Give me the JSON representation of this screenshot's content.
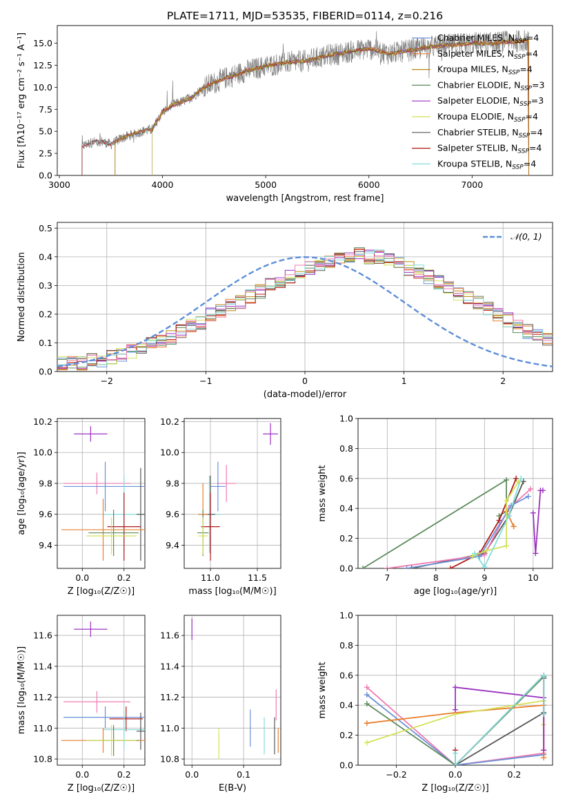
{
  "title": "PLATE=1711, MJD=53535, FIBERID=0114, z=0.216",
  "colors": {
    "Chabrier MILES": "#6a8fd6",
    "Salpeter MILES": "#e87d2a",
    "Kroupa MILES": "#b8860b",
    "Chabrier ELODIE": "#5b8a5b",
    "Salpeter ELODIE": "#9b30c0",
    "Kroupa ELODIE": "#d4e157",
    "Chabrier STELIB": "#555555",
    "Salpeter STELIB": "#b01818",
    "Kroupa STELIB": "#80dedc",
    "extra": "#ef7ab0",
    "data": "#808080",
    "gaussian": "#5b8dd9"
  },
  "chart_data": [
    {
      "id": "spectrum",
      "type": "line",
      "title": "PLATE=1711, MJD=53535, FIBERID=0114, z=0.216",
      "xlabel": "wavelength [Angstrom, rest frame]",
      "ylabel": "Flux [fλ10⁻¹⁷ erg cm⁻² s⁻¹ A⁻¹]",
      "xlim": [
        2980,
        7780
      ],
      "ylim": [
        0,
        17
      ],
      "xticks": [
        "3000",
        "4000",
        "5000",
        "6000",
        "7000"
      ],
      "yticks": [
        "0.0",
        "2.5",
        "5.0",
        "7.5",
        "10.0",
        "12.5",
        "15.0"
      ],
      "spectrum_envelope": {
        "x": [
          3220,
          3300,
          3400,
          3500,
          3600,
          3700,
          3800,
          3900,
          3950,
          4000,
          4100,
          4200,
          4300,
          4400,
          4600,
          4800,
          5000,
          5200,
          5400,
          5600,
          5800,
          6000,
          6200,
          6400,
          6600,
          6800,
          7000,
          7200,
          7400,
          7550
        ],
        "y": [
          3.3,
          3.7,
          3.9,
          3.5,
          4.2,
          4.6,
          5.0,
          5.2,
          6.2,
          7.2,
          8.0,
          8.4,
          9.0,
          10.0,
          11.0,
          11.8,
          12.4,
          12.8,
          13.0,
          13.6,
          14.0,
          14.4,
          13.8,
          14.2,
          14.6,
          14.8,
          15.0,
          15.0,
          15.2,
          15.3
        ]
      },
      "legend": [
        {
          "name": "Chabrier MILES, N",
          "sub": "SSP",
          "tail": "=4"
        },
        {
          "name": "Salpeter MILES, N",
          "sub": "SSP",
          "tail": "=4"
        },
        {
          "name": "Kroupa MILES, N",
          "sub": "SSP",
          "tail": "=4"
        },
        {
          "name": "Chabrier ELODIE, N",
          "sub": "SSP",
          "tail": "=3"
        },
        {
          "name": "Salpeter ELODIE, N",
          "sub": "SSP",
          "tail": "=3"
        },
        {
          "name": "Kroupa ELODIE, N",
          "sub": "SSP",
          "tail": "=4"
        },
        {
          "name": "Chabrier STELIB, N",
          "sub": "SSP",
          "tail": "=4"
        },
        {
          "name": "Salpeter STELIB, N",
          "sub": "SSP",
          "tail": "=4"
        },
        {
          "name": "Kroupa STELIB, N",
          "sub": "SSP",
          "tail": "=4"
        }
      ],
      "legend_position": "lower-right"
    },
    {
      "id": "residuals",
      "type": "line",
      "xlabel": "(data-model)/error",
      "ylabel": "Normed distribution",
      "xlim": [
        -2.5,
        2.5
      ],
      "ylim": [
        0,
        0.52
      ],
      "xticks": [
        "−2",
        "−1",
        "0",
        "1",
        "2"
      ],
      "yticks": [
        "0.0",
        "0.1",
        "0.2",
        "0.3",
        "0.4",
        "0.5"
      ],
      "legend": "𝒩(0, 1)",
      "legend_position": "upper-right",
      "grid": true,
      "bin_width": 0.1,
      "bin_start": -2.5,
      "base_hist": [
        0.03,
        0.03,
        0.03,
        0.04,
        0.04,
        0.05,
        0.06,
        0.07,
        0.08,
        0.1,
        0.11,
        0.12,
        0.14,
        0.16,
        0.17,
        0.2,
        0.21,
        0.23,
        0.24,
        0.26,
        0.28,
        0.3,
        0.31,
        0.33,
        0.35,
        0.36,
        0.37,
        0.38,
        0.4,
        0.4,
        0.41,
        0.4,
        0.4,
        0.39,
        0.38,
        0.36,
        0.35,
        0.33,
        0.31,
        0.29,
        0.27,
        0.26,
        0.24,
        0.22,
        0.2,
        0.18,
        0.16,
        0.14,
        0.13,
        0.11
      ]
    },
    {
      "id": "age-vs-Z",
      "type": "scatter",
      "xlabel": "Z [log₁₀(Z/Z☉)]",
      "ylabel": "age  [log₁₀(age/yr)]",
      "xlim": [
        -0.12,
        0.3
      ],
      "ylim": [
        9.25,
        10.22
      ],
      "xticks": [
        "0.0",
        "0.2"
      ],
      "yticks": [
        "9.4",
        "9.6",
        "9.8",
        "10.0",
        "10.2"
      ],
      "points": [
        {
          "series": "Salpeter ELODIE",
          "x": 0.04,
          "y": 10.12,
          "xerr": 0.08,
          "yerr": 0.05
        },
        {
          "series": "extra",
          "x": 0.07,
          "y": 9.8,
          "xerr": 0.16,
          "yerr": 0.07
        },
        {
          "series": "Chabrier MILES",
          "x": 0.11,
          "y": 9.78,
          "xerr": 0.2,
          "yerr": 0.16
        },
        {
          "series": "Kroupa STELIB",
          "x": 0.2,
          "y": 9.6,
          "xerr": 0.1,
          "yerr": 0.25
        },
        {
          "series": "Chabrier STELIB",
          "x": 0.28,
          "y": 9.6,
          "xerr": 0.02,
          "yerr": 0.3
        },
        {
          "series": "Salpeter STELIB",
          "x": 0.2,
          "y": 9.52,
          "xerr": 0.08,
          "yerr": 0.22
        },
        {
          "series": "Salpeter MILES",
          "x": 0.1,
          "y": 9.5,
          "xerr": 0.2,
          "yerr": 0.2
        },
        {
          "series": "Chabrier ELODIE",
          "x": 0.15,
          "y": 9.48,
          "xerr": 0.12,
          "yerr": 0.15
        },
        {
          "series": "Kroupa ELODIE",
          "x": 0.14,
          "y": 9.46,
          "xerr": 0.12,
          "yerr": 0.12
        }
      ]
    },
    {
      "id": "age-vs-mass",
      "type": "scatter",
      "xlabel": "mass [log₁₀(M/M☉)]",
      "ylabel": "",
      "xlim": [
        10.72,
        11.75
      ],
      "ylim": [
        9.25,
        10.22
      ],
      "xticks": [
        "11.0",
        "11.5"
      ],
      "yticks": [
        "9.4",
        "9.6",
        "9.8",
        "10.0",
        "10.2"
      ],
      "points": [
        {
          "series": "Salpeter ELODIE",
          "x": 11.64,
          "y": 10.12,
          "xerr": 0.08,
          "yerr": 0.07
        },
        {
          "series": "extra",
          "x": 11.17,
          "y": 9.8,
          "xerr": 0.1,
          "yerr": 0.12
        },
        {
          "series": "Chabrier MILES",
          "x": 11.08,
          "y": 9.78,
          "xerr": 0.08,
          "yerr": 0.16
        },
        {
          "series": "Kroupa STELIB",
          "x": 10.99,
          "y": 9.6,
          "xerr": 0.12,
          "yerr": 0.25
        },
        {
          "series": "Chabrier STELIB",
          "x": 11.0,
          "y": 9.6,
          "xerr": 0.05,
          "yerr": 0.25
        },
        {
          "series": "Salpeter STELIB",
          "x": 11.0,
          "y": 9.52,
          "xerr": 0.1,
          "yerr": 0.22
        },
        {
          "series": "Salpeter MILES",
          "x": 10.92,
          "y": 9.6,
          "xerr": 0.05,
          "yerr": 0.2
        },
        {
          "series": "Chabrier ELODIE",
          "x": 10.92,
          "y": 9.48,
          "xerr": 0.06,
          "yerr": 0.15
        },
        {
          "series": "Kroupa ELODIE",
          "x": 10.92,
          "y": 9.46,
          "xerr": 0.05,
          "yerr": 0.12
        }
      ]
    },
    {
      "id": "massweight-vs-age",
      "type": "line",
      "xlabel": "age  [log₁₀(age/yr)]",
      "ylabel": "mass weight",
      "xlim": [
        6.4,
        10.4
      ],
      "ylim": [
        0,
        1
      ],
      "xticks": [
        "7",
        "8",
        "9",
        "10"
      ],
      "yticks": [
        "0.0",
        "0.2",
        "0.4",
        "0.6",
        "0.8",
        "1.0"
      ],
      "grid": true,
      "series": [
        {
          "name": "Chabrier ELODIE",
          "x": [
            6.5,
            9.45,
            9.45,
            9.3
          ],
          "y": [
            0.0,
            0.59,
            0.38,
            0.35
          ]
        },
        {
          "name": "Chabrier STELIB",
          "x": [
            7.5,
            9.0,
            9.5,
            9.8
          ],
          "y": [
            0.0,
            0.1,
            0.35,
            0.58
          ]
        },
        {
          "name": "Salpeter STELIB",
          "x": [
            8.3,
            8.9,
            9.3,
            9.65
          ],
          "y": [
            0.0,
            0.1,
            0.32,
            0.6
          ]
        },
        {
          "name": "extra",
          "x": [
            7.0,
            9.0,
            9.5,
            9.95
          ],
          "y": [
            0.0,
            0.09,
            0.4,
            0.53
          ]
        },
        {
          "name": "Chabrier MILES",
          "x": [
            7.4,
            8.9,
            9.55,
            9.9
          ],
          "y": [
            0.0,
            0.08,
            0.42,
            0.48
          ]
        },
        {
          "name": "Salpeter MILES",
          "x": [
            9.45,
            9.6,
            9.6
          ],
          "y": [
            0.38,
            0.28,
            0.28
          ]
        },
        {
          "name": "Kroupa ELODIE",
          "x": [
            8.75,
            9.05,
            9.45,
            9.45,
            9.7
          ],
          "y": [
            0.08,
            0.12,
            0.15,
            0.45,
            0.58
          ]
        },
        {
          "name": "Kroupa STELIB",
          "x": [
            8.8,
            9.0,
            9.5,
            9.75
          ],
          "y": [
            0.1,
            0.01,
            0.35,
            0.6
          ]
        },
        {
          "name": "Salpeter ELODIE",
          "x": [
            10.0,
            10.05,
            10.15,
            10.2
          ],
          "y": [
            0.37,
            0.1,
            0.52,
            0.52
          ]
        }
      ]
    },
    {
      "id": "mass-vs-Z",
      "type": "scatter",
      "xlabel": "Z [log₁₀(Z/Z☉)]",
      "ylabel": "mass [log₁₀(M/M☉)]",
      "xlim": [
        -0.12,
        0.3
      ],
      "ylim": [
        10.76,
        11.73
      ],
      "xticks": [
        "0.0",
        "0.2"
      ],
      "yticks": [
        "10.8",
        "11.0",
        "11.2",
        "11.4",
        "11.6"
      ],
      "points": [
        {
          "series": "Salpeter ELODIE",
          "x": 0.04,
          "y": 11.64,
          "xerr": 0.08,
          "yerr": 0.05
        },
        {
          "series": "extra",
          "x": 0.07,
          "y": 11.17,
          "xerr": 0.16,
          "yerr": 0.07
        },
        {
          "series": "Chabrier MILES",
          "x": 0.11,
          "y": 11.07,
          "xerr": 0.2,
          "yerr": 0.07
        },
        {
          "series": "Salpeter STELIB",
          "x": 0.21,
          "y": 11.06,
          "xerr": 0.08,
          "yerr": 0.08
        },
        {
          "series": "Kroupa STELIB",
          "x": 0.2,
          "y": 10.99,
          "xerr": 0.1,
          "yerr": 0.12
        },
        {
          "series": "Chabrier STELIB",
          "x": 0.28,
          "y": 10.98,
          "xerr": 0.02,
          "yerr": 0.12
        },
        {
          "series": "Salpeter MILES",
          "x": 0.1,
          "y": 10.92,
          "xerr": 0.2,
          "yerr": 0.08
        },
        {
          "series": "Chabrier ELODIE",
          "x": 0.15,
          "y": 10.92,
          "xerr": 0.12,
          "yerr": 0.1
        },
        {
          "series": "Kroupa ELODIE",
          "x": 0.14,
          "y": 10.92,
          "xerr": 0.12,
          "yerr": 0.1
        }
      ]
    },
    {
      "id": "mass-vs-EBV",
      "type": "scatter",
      "xlabel": "E(B-V)",
      "ylabel": "",
      "xlim": [
        -0.015,
        0.172
      ],
      "ylim": [
        10.76,
        11.73
      ],
      "xticks": [
        "0.0",
        "0.1"
      ],
      "yticks": [
        "10.8",
        "11.0",
        "11.2",
        "11.4",
        "11.6"
      ],
      "points": [
        {
          "series": "Salpeter ELODIE",
          "x": 0.0,
          "y": 11.64,
          "xerr": 0.0,
          "yerr": 0.07
        },
        {
          "series": "Kroupa ELODIE",
          "x": 0.052,
          "y": 10.9,
          "xerr": 0.0,
          "yerr": 0.1
        },
        {
          "series": "Chabrier MILES",
          "x": 0.113,
          "y": 11.0,
          "xerr": 0.0,
          "yerr": 0.12
        },
        {
          "series": "Kroupa STELIB",
          "x": 0.14,
          "y": 10.95,
          "xerr": 0.0,
          "yerr": 0.12
        },
        {
          "series": "Chabrier STELIB",
          "x": 0.16,
          "y": 10.95,
          "xerr": 0.0,
          "yerr": 0.12
        },
        {
          "series": "extra",
          "x": 0.163,
          "y": 11.15,
          "xerr": 0.0,
          "yerr": 0.1
        },
        {
          "series": "Salpeter MILES",
          "x": 0.167,
          "y": 10.92,
          "xerr": 0.0,
          "yerr": 0.08
        }
      ]
    },
    {
      "id": "massweight-vs-Z",
      "type": "line",
      "xlabel": "Z [log₁₀(Z/Z☉)]",
      "ylabel": "mass weight",
      "xlim": [
        -0.33,
        0.33
      ],
      "ylim": [
        0,
        1
      ],
      "xticks": [
        "−0.2",
        "0.0",
        "0.2"
      ],
      "yticks": [
        "0.0",
        "0.2",
        "0.4",
        "0.6",
        "0.8",
        "1.0"
      ],
      "grid": true,
      "series": [
        {
          "name": "extra",
          "x": [
            -0.3,
            0.0,
            0.3
          ],
          "y": [
            0.52,
            0.0,
            0.08
          ]
        },
        {
          "name": "Chabrier MILES",
          "x": [
            -0.3,
            0.0,
            0.3
          ],
          "y": [
            0.47,
            0.0,
            0.07
          ]
        },
        {
          "name": "Chabrier ELODIE",
          "x": [
            -0.3,
            0.0,
            0.3
          ],
          "y": [
            0.41,
            0.0,
            0.59
          ]
        },
        {
          "name": "Salpeter MILES",
          "x": [
            -0.3,
            0.0,
            0.3,
            0.3
          ],
          "y": [
            0.28,
            0.35,
            0.4,
            0.05
          ]
        },
        {
          "name": "Kroupa ELODIE",
          "x": [
            -0.3,
            0.0,
            0.3,
            0.3
          ],
          "y": [
            0.15,
            0.34,
            0.43,
            0.27
          ]
        },
        {
          "name": "Chabrier STELIB",
          "x": [
            0.0,
            0.3,
            0.3
          ],
          "y": [
            0.0,
            0.35,
            0.58
          ]
        },
        {
          "name": "Salpeter STELIB",
          "x": [
            0.0,
            0.0,
            0.3,
            0.3
          ],
          "y": [
            0.1,
            0.0,
            0.6,
            0.1
          ]
        },
        {
          "name": "Salpeter ELODIE",
          "x": [
            0.0,
            0.0,
            0.3,
            0.3
          ],
          "y": [
            0.37,
            0.52,
            0.45,
            0.1
          ]
        },
        {
          "name": "Kroupa STELIB",
          "x": [
            0.0,
            0.0,
            0.3,
            0.3
          ],
          "y": [
            0.08,
            0.0,
            0.6,
            0.34
          ]
        }
      ]
    }
  ]
}
